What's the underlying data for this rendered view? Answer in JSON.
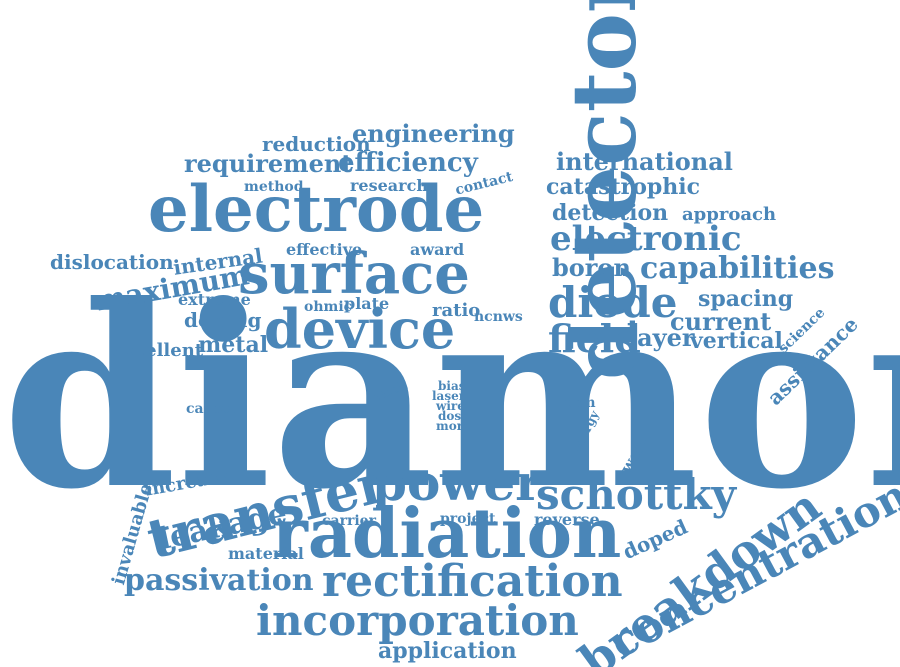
{
  "colors": {
    "word": "#4a86b8",
    "background": "#ffffff"
  },
  "words": [
    {
      "text": "diamond"
    },
    {
      "text": "detector"
    },
    {
      "text": "electrode"
    },
    {
      "text": "surface"
    },
    {
      "text": "device"
    },
    {
      "text": "radiation"
    },
    {
      "text": "power"
    },
    {
      "text": "schottky"
    },
    {
      "text": "transfer"
    },
    {
      "text": "rectification"
    },
    {
      "text": "incorporation"
    },
    {
      "text": "breakdown"
    },
    {
      "text": "concentration"
    },
    {
      "text": "diode"
    },
    {
      "text": "electronic"
    },
    {
      "text": "capabilities"
    },
    {
      "text": "field"
    },
    {
      "text": "passivation"
    },
    {
      "text": "leakage"
    },
    {
      "text": "engineering"
    },
    {
      "text": "efficiency"
    },
    {
      "text": "requirement"
    },
    {
      "text": "reduction"
    },
    {
      "text": "international"
    },
    {
      "text": "catastrophic"
    },
    {
      "text": "detection"
    },
    {
      "text": "approach"
    },
    {
      "text": "boron"
    },
    {
      "text": "spacing"
    },
    {
      "text": "current"
    },
    {
      "text": "layer"
    },
    {
      "text": "vertical"
    },
    {
      "text": "maximum"
    },
    {
      "text": "dislocation"
    },
    {
      "text": "internal"
    },
    {
      "text": "doping"
    },
    {
      "text": "metal"
    },
    {
      "text": "excellent"
    },
    {
      "text": "method"
    },
    {
      "text": "research"
    },
    {
      "text": "contact"
    },
    {
      "text": "effective"
    },
    {
      "text": "award"
    },
    {
      "text": "extreme"
    },
    {
      "text": "ohmic"
    },
    {
      "text": "plate"
    },
    {
      "text": "ratio"
    },
    {
      "text": "ncnws"
    },
    {
      "text": "assistance"
    },
    {
      "text": "science"
    },
    {
      "text": "carbon"
    },
    {
      "text": "thick"
    },
    {
      "text": "bias"
    },
    {
      "text": "laser"
    },
    {
      "text": "wire"
    },
    {
      "text": "dose"
    },
    {
      "text": "more"
    },
    {
      "text": "form"
    },
    {
      "text": "energy"
    },
    {
      "text": "work"
    },
    {
      "text": "increase"
    },
    {
      "text": "invaluable"
    },
    {
      "text": "carrier"
    },
    {
      "text": "project"
    },
    {
      "text": "reverse"
    },
    {
      "text": "doped"
    },
    {
      "text": "material"
    },
    {
      "text": "application"
    }
  ]
}
